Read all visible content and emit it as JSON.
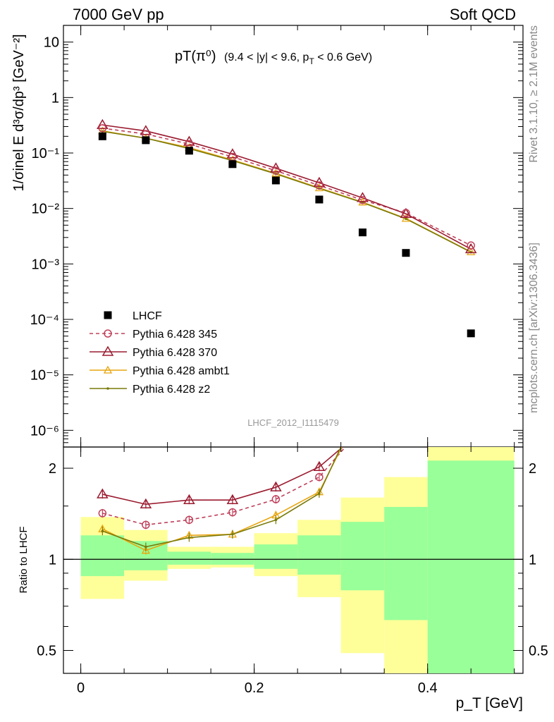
{
  "header": {
    "left": "7000 GeV pp",
    "right": "Soft QCD"
  },
  "plot_title": {
    "main": "pT(π⁰)",
    "detail": "(9.4 < |y| < 9.6, p",
    "sub": "T",
    "tail": " < 0.6 GeV)"
  },
  "ylabel_main": "1/σinel E d³σ/dp³ [GeV⁻²]",
  "ylabel_ratio": "Ratio to LHCF",
  "xlabel": "p_T [GeV]",
  "side_text_top": "Rivet 3.1.10, ≥ 2.1M events",
  "side_text_bottom": "mcplots.cern.ch [arXiv:1306.3436]",
  "analysis_id": "LHCF_2012_I1115479",
  "colors": {
    "data": "#000000",
    "p345": "#c0405a",
    "p370": "#9b1b30",
    "ambt1": "#e8a50f",
    "z2": "#7a7a0a",
    "band_outer": "#ffff99",
    "band_inner": "#99ff99"
  },
  "chart_data": [
    {
      "type": "scatter",
      "panel": "main",
      "yscale": "log",
      "xlim": [
        -0.02,
        0.51
      ],
      "ylim": [
        5e-07,
        20
      ],
      "y_ticks": [
        "10",
        "1",
        "10⁻¹",
        "10⁻²",
        "10⁻³",
        "10⁻⁴",
        "10⁻⁵",
        "10⁻⁶"
      ],
      "legend_position": "lower-left",
      "series": [
        {
          "name": "LHCF",
          "style": "square",
          "x": [
            0.025,
            0.075,
            0.125,
            0.175,
            0.225,
            0.275,
            0.325,
            0.375,
            0.45
          ],
          "values": [
            0.2,
            0.17,
            0.11,
            0.063,
            0.032,
            0.0145,
            0.0037,
            0.00158,
            5.6e-05
          ]
        },
        {
          "name": "Pythia 6.428 345",
          "style": "dashed-circle",
          "x": [
            0.025,
            0.075,
            0.125,
            0.175,
            0.225,
            0.275,
            0.325,
            0.375,
            0.45
          ],
          "values": [
            0.28,
            0.22,
            0.145,
            0.085,
            0.048,
            0.026,
            0.0142,
            0.0083,
            0.00215
          ]
        },
        {
          "name": "Pythia 6.428 370",
          "style": "solid-triangle",
          "x": [
            0.025,
            0.075,
            0.125,
            0.175,
            0.225,
            0.275,
            0.325,
            0.375,
            0.45
          ],
          "values": [
            0.32,
            0.25,
            0.16,
            0.095,
            0.053,
            0.029,
            0.0155,
            0.008,
            0.00185
          ]
        },
        {
          "name": "Pythia 6.428 ambt1",
          "style": "solid-triangle-small",
          "x": [
            0.025,
            0.075,
            0.125,
            0.175,
            0.225,
            0.275,
            0.325,
            0.375,
            0.45
          ],
          "values": [
            0.25,
            0.185,
            0.125,
            0.075,
            0.043,
            0.0235,
            0.013,
            0.0066,
            0.00165
          ]
        },
        {
          "name": "Pythia 6.428 z2",
          "style": "solid-dot",
          "x": [
            0.025,
            0.075,
            0.125,
            0.175,
            0.225,
            0.275,
            0.325,
            0.375,
            0.45
          ],
          "values": [
            0.245,
            0.185,
            0.12,
            0.073,
            0.042,
            0.023,
            0.0128,
            0.0065,
            0.00163
          ]
        }
      ]
    },
    {
      "type": "line",
      "panel": "ratio",
      "yscale": "log",
      "xlim": [
        -0.02,
        0.51
      ],
      "ylim": [
        0.42,
        2.35
      ],
      "x_ticks": [
        "0",
        "0.2",
        "0.4"
      ],
      "y_ticks": [
        "2",
        "1",
        "0.5"
      ],
      "bins": [
        [
          0.0,
          0.05
        ],
        [
          0.05,
          0.1
        ],
        [
          0.1,
          0.15
        ],
        [
          0.15,
          0.2
        ],
        [
          0.2,
          0.25
        ],
        [
          0.25,
          0.3
        ],
        [
          0.3,
          0.35
        ],
        [
          0.35,
          0.4
        ],
        [
          0.4,
          0.5
        ]
      ],
      "band_outer": [
        [
          0.74,
          1.38
        ],
        [
          0.85,
          1.25
        ],
        [
          0.93,
          1.1
        ],
        [
          0.94,
          1.1
        ],
        [
          0.88,
          1.22
        ],
        [
          0.75,
          1.35
        ],
        [
          0.49,
          1.6
        ],
        [
          0.42,
          1.87
        ],
        [
          0.42,
          2.35
        ]
      ],
      "band_inner": [
        [
          0.88,
          1.2
        ],
        [
          0.92,
          1.15
        ],
        [
          0.96,
          1.06
        ],
        [
          0.96,
          1.05
        ],
        [
          0.93,
          1.12
        ],
        [
          0.89,
          1.2
        ],
        [
          0.79,
          1.33
        ],
        [
          0.63,
          1.49
        ],
        [
          0.42,
          2.12
        ]
      ],
      "series": [
        {
          "name": "Pythia 6.428 345",
          "x": [
            0.025,
            0.075,
            0.125,
            0.175,
            0.225,
            0.275,
            0.305
          ],
          "values": [
            1.42,
            1.3,
            1.35,
            1.43,
            1.58,
            1.87,
            2.35
          ]
        },
        {
          "name": "Pythia 6.428 370",
          "x": [
            0.025,
            0.075,
            0.125,
            0.175,
            0.225,
            0.275,
            0.302
          ],
          "values": [
            1.64,
            1.52,
            1.57,
            1.57,
            1.73,
            2.02,
            2.35
          ]
        },
        {
          "name": "Pythia 6.428 ambt1",
          "x": [
            0.025,
            0.075,
            0.125,
            0.175,
            0.225,
            0.275,
            0.301
          ],
          "values": [
            1.26,
            1.07,
            1.2,
            1.21,
            1.4,
            1.67,
            2.35
          ]
        },
        {
          "name": "Pythia 6.428 z2",
          "x": [
            0.025,
            0.075,
            0.125,
            0.175,
            0.225,
            0.275,
            0.3
          ],
          "values": [
            1.24,
            1.1,
            1.18,
            1.21,
            1.35,
            1.65,
            2.35
          ]
        }
      ]
    }
  ]
}
